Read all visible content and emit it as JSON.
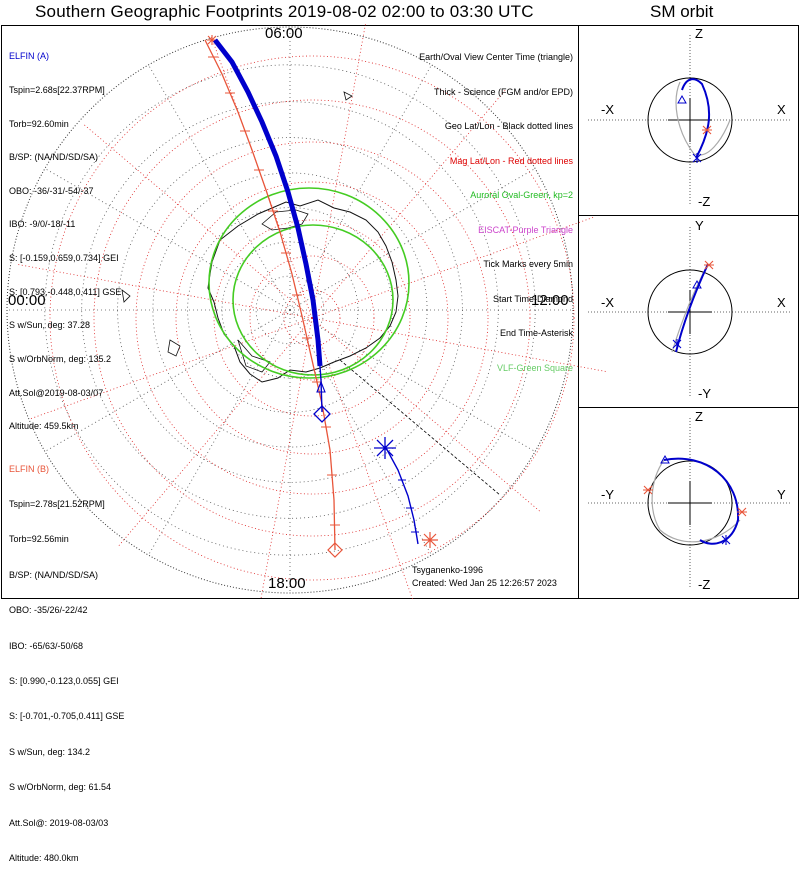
{
  "title": "Southern Geographic Footprints 2019-08-02 02:00 to 03:30 UTC",
  "side_title": "SM orbit",
  "clock_labels": {
    "top": "06:00",
    "left": "00:00",
    "right": "12:00",
    "bottom": "18:00"
  },
  "elfin_a": {
    "name": "ELFIN (A)",
    "color": "#0000cc",
    "lines": [
      "Tspin=2.68s[22.37RPM]",
      "Torb=92.60min",
      "B/SP: (NA/ND/SD/SA)",
      "OBO: -36/-31/-54/-37",
      "IBO: -9/0/-18/-11",
      "S: [-0.159,0.659,0.734] GEI",
      "S: [0.793,-0.448,0.411] GSE",
      "S w/Sun, deg: 37.28",
      "S w/OrbNorm, deg: 135.2",
      "Att.Sol@2019-08-03/07",
      "Altitude: 459.5km"
    ]
  },
  "elfin_b": {
    "name": "ELFIN (B)",
    "color": "#e8553a",
    "lines": [
      "Tspin=2.78s[21.52RPM]",
      "Torb=92.56min",
      "B/SP: (NA/ND/SD/SA)",
      "OBO: -35/26/-22/42",
      "IBO: -65/63/-50/68",
      "S: [0.990,-0.123,0.055] GEI",
      "S: [-0.701,-0.705,0.411] GSE",
      "S w/Sun, deg: 134.2",
      "S w/OrbNorm, deg: 61.54",
      "Att.Sol@: 2019-08-03/03",
      "Altitude: 480.0km"
    ]
  },
  "legend": [
    {
      "text": "Earth/Oval View Center Time (triangle)",
      "color": "#000000"
    },
    {
      "text": "Thick - Science (FGM and/or EPD)",
      "color": "#000000"
    },
    {
      "text": "Geo Lat/Lon - Black dotted lines",
      "color": "#000000"
    },
    {
      "text": "Mag Lat/Lon - Red dotted lines",
      "color": "#dd0000"
    },
    {
      "text": "Auroral Oval-Green, kp=2",
      "color": "#22bb22"
    },
    {
      "text": "EISCAT-Purple Triangle",
      "color": "#cc44cc"
    },
    {
      "text": "Tick Marks every 5min",
      "color": "#000000"
    },
    {
      "text": "Start Time-Diamond",
      "color": "#000000"
    },
    {
      "text": "End Time-Asterisk",
      "color": "#000000"
    },
    {
      "text": "VLF-Green Square",
      "color": "#66cc66"
    }
  ],
  "footer": {
    "author": "Tsyganenko-1996",
    "created": "Created: Wed Jan 25 12:26:57 2023"
  },
  "sm_panels": [
    {
      "top": "Z",
      "bottom": "-Z",
      "left": "-X",
      "right": "X"
    },
    {
      "top": "Y",
      "bottom": "-Y",
      "left": "-X",
      "right": "X"
    },
    {
      "top": "Z",
      "bottom": "-Z",
      "left": "-Y",
      "right": "Y"
    }
  ],
  "colors": {
    "elfin_a": "#0000cc",
    "elfin_b": "#e8553a",
    "auroral_oval": "#44cc22",
    "mag_grid": "#dd2222",
    "geo_grid": "#555555"
  },
  "chart_data": [
    {
      "type": "scatter",
      "title": "Southern Geographic Footprints 2019-08-02 02:00 to 03:30 UTC",
      "projection": "south polar stereographic, noon to the right",
      "local_time_labels": [
        "06:00",
        "12:00",
        "18:00",
        "00:00"
      ],
      "series": [
        {
          "name": "ELFIN (A)",
          "footprint_lon": [
            -95,
            -96,
            -98,
            -101,
            -104,
            -110,
            -120,
            -132,
            -144,
            -152,
            -157,
            -160
          ],
          "footprint_lat": [
            -52,
            -57,
            -62,
            -67,
            -72,
            -77,
            -81,
            -84,
            -84,
            -81,
            -76,
            -72
          ]
        },
        {
          "name": "ELFIN (B)",
          "footprint_lon": [
            -92,
            -94,
            -97,
            -103,
            -112,
            -126,
            -142,
            -158,
            -170,
            -177,
            -180
          ],
          "footprint_lat": [
            -50,
            -55,
            -60,
            -66,
            -72,
            -77,
            -80,
            -80,
            -76,
            -71,
            -65
          ]
        }
      ]
    },
    {
      "type": "scatter",
      "title": "SM orbit",
      "xlabel": "X",
      "ylabel": "Z"
    },
    {
      "type": "scatter",
      "xlabel": "X",
      "ylabel": "Y"
    },
    {
      "type": "scatter",
      "xlabel": "Y",
      "ylabel": "Z"
    }
  ]
}
